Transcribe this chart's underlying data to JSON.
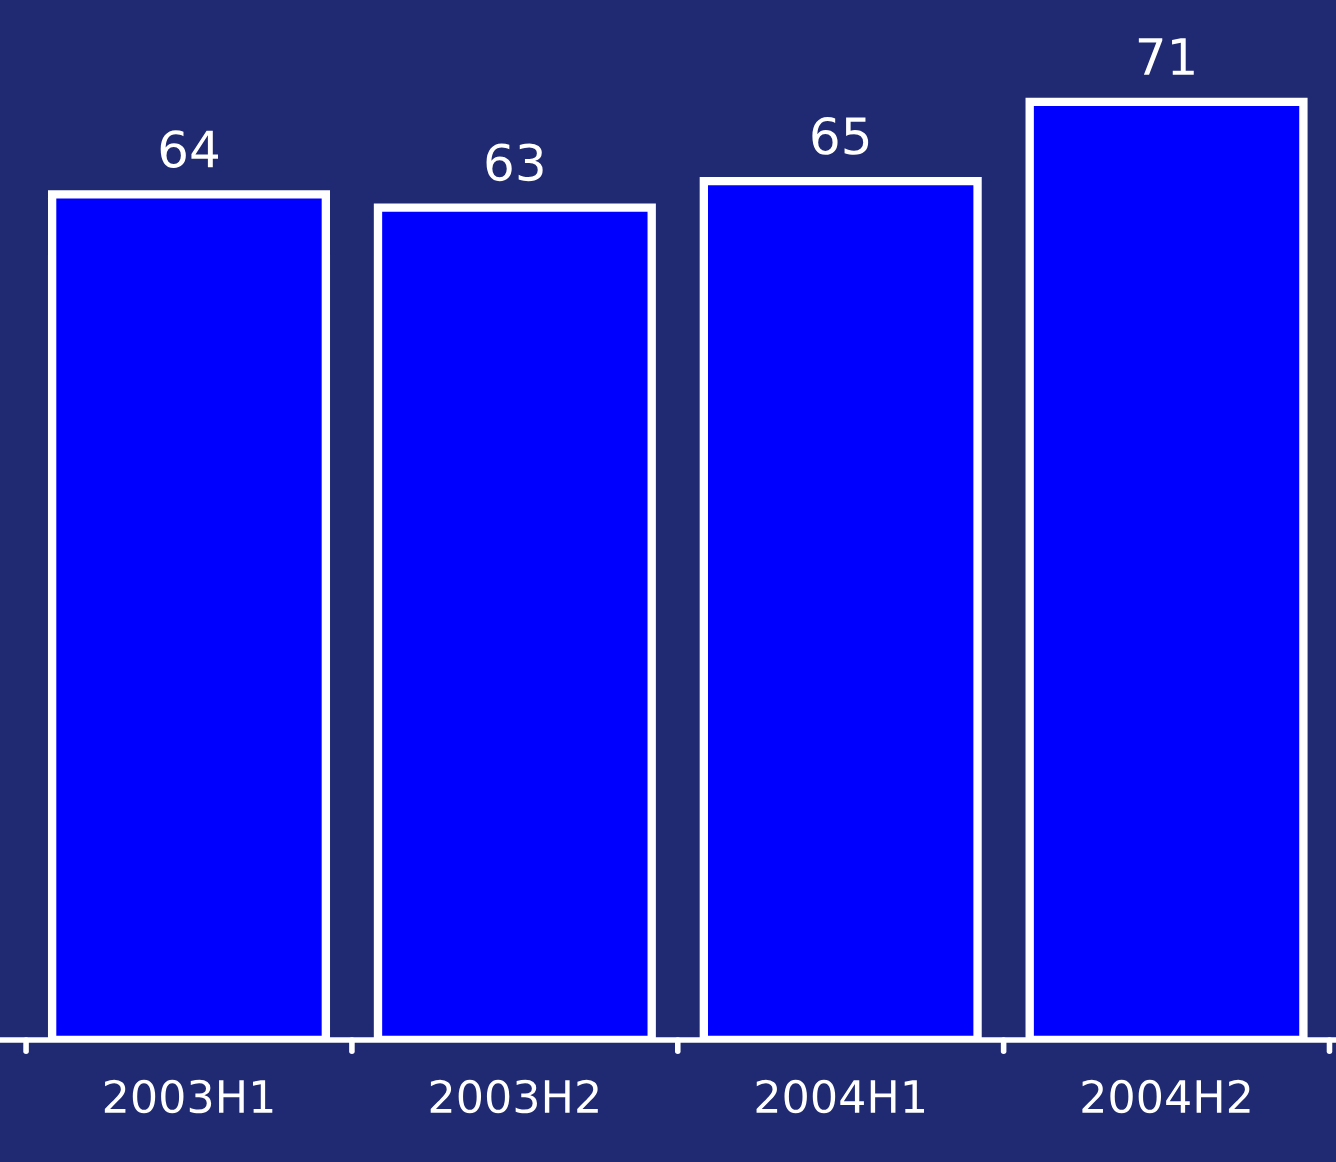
{
  "chart_data": {
    "type": "bar",
    "categories": [
      "2003H1",
      "2003H2",
      "2004H1",
      "2004H2"
    ],
    "values": [
      64,
      63,
      65,
      71
    ],
    "color": "#0000ff",
    "data_labels": true,
    "grid": false,
    "legend": false
  }
}
